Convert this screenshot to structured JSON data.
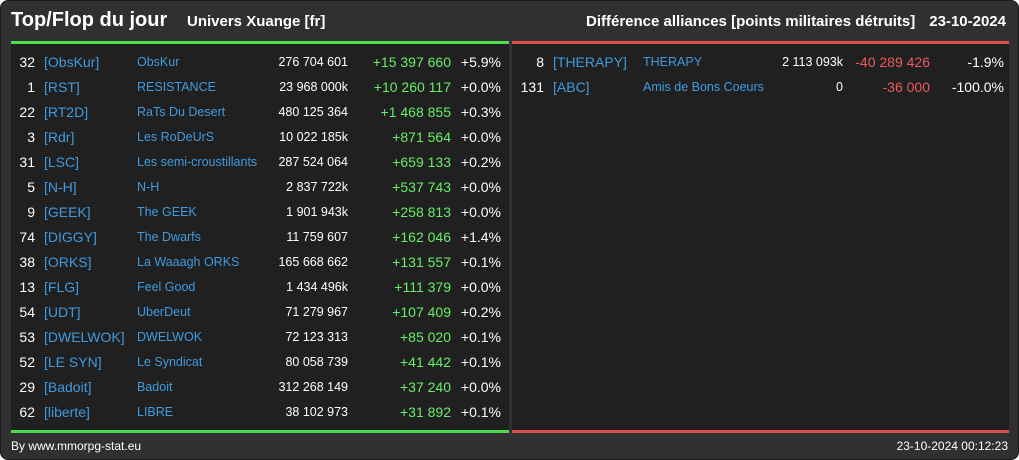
{
  "header": {
    "title": "Top/Flop du jour",
    "universe": "Univers Xuange [fr]",
    "subtitle": "Différence alliances [points militaires détruits]",
    "date": "23-10-2024"
  },
  "colors": {
    "background": "#303030",
    "panel": "#202020",
    "top_accent": "#4ddc4d",
    "flop_accent": "#d9504d",
    "link": "#3f9be0",
    "positive": "#67ee67",
    "negative": "#ee5a5a"
  },
  "top": [
    {
      "rank": "32",
      "tag": "[ObsKur]",
      "name": "ObsKur",
      "points": "276 704 601",
      "diff": "+15 397 660",
      "pct": "+5.9%"
    },
    {
      "rank": "1",
      "tag": "[RST]",
      "name": "RESISTANCE",
      "points": "23 968 000k",
      "diff": "+10 260 117",
      "pct": "+0.0%"
    },
    {
      "rank": "22",
      "tag": "[RT2D]",
      "name": "RaTs Du Desert",
      "points": "480 125 364",
      "diff": "+1 468 855",
      "pct": "+0.3%"
    },
    {
      "rank": "3",
      "tag": "[Rdr]",
      "name": "Les RoDeUrS",
      "points": "10 022 185k",
      "diff": "+871 564",
      "pct": "+0.0%"
    },
    {
      "rank": "31",
      "tag": "[LSC]",
      "name": "Les semi-croustillants",
      "points": "287 524 064",
      "diff": "+659 133",
      "pct": "+0.2%"
    },
    {
      "rank": "5",
      "tag": "[N-H]",
      "name": "N-H",
      "points": "2 837 722k",
      "diff": "+537 743",
      "pct": "+0.0%"
    },
    {
      "rank": "9",
      "tag": "[GEEK]",
      "name": "The GEEK",
      "points": "1 901 943k",
      "diff": "+258 813",
      "pct": "+0.0%"
    },
    {
      "rank": "74",
      "tag": "[DIGGY]",
      "name": "The Dwarfs",
      "points": "11 759 607",
      "diff": "+162 046",
      "pct": "+1.4%"
    },
    {
      "rank": "38",
      "tag": "[ORKS]",
      "name": "La Waaagh ORKS",
      "points": "165 668 662",
      "diff": "+131 557",
      "pct": "+0.1%"
    },
    {
      "rank": "13",
      "tag": "[FLG]",
      "name": "Feel Good",
      "points": "1 434 496k",
      "diff": "+111 379",
      "pct": "+0.0%"
    },
    {
      "rank": "54",
      "tag": "[UDT]",
      "name": "UberDeut",
      "points": "71 279 967",
      "diff": "+107 409",
      "pct": "+0.2%"
    },
    {
      "rank": "53",
      "tag": "[DWELWOK]",
      "name": "DWELWOK",
      "points": "72 123 313",
      "diff": "+85 020",
      "pct": "+0.1%"
    },
    {
      "rank": "52",
      "tag": "[LE SYN]",
      "name": "Le Syndicat",
      "points": "80 058 739",
      "diff": "+41 442",
      "pct": "+0.1%"
    },
    {
      "rank": "29",
      "tag": "[Badoit]",
      "name": "Badoit",
      "points": "312 268 149",
      "diff": "+37 240",
      "pct": "+0.0%"
    },
    {
      "rank": "62",
      "tag": "[liberte]",
      "name": "LIBRE",
      "points": "38 102 973",
      "diff": "+31 892",
      "pct": "+0.1%"
    }
  ],
  "flop": [
    {
      "rank": "8",
      "tag": "[THERAPY]",
      "name": "THERAPY",
      "points": "2 113 093k",
      "diff": "-40 289 426",
      "pct": "-1.9%"
    },
    {
      "rank": "131",
      "tag": "[ABC]",
      "name": "Amis de Bons Coeurs",
      "points": "0",
      "diff": "-36 000",
      "pct": "-100.0%"
    }
  ],
  "footer": {
    "source": "By www.mmorpg-stat.eu",
    "timestamp": "23-10-2024 00:12:23"
  }
}
